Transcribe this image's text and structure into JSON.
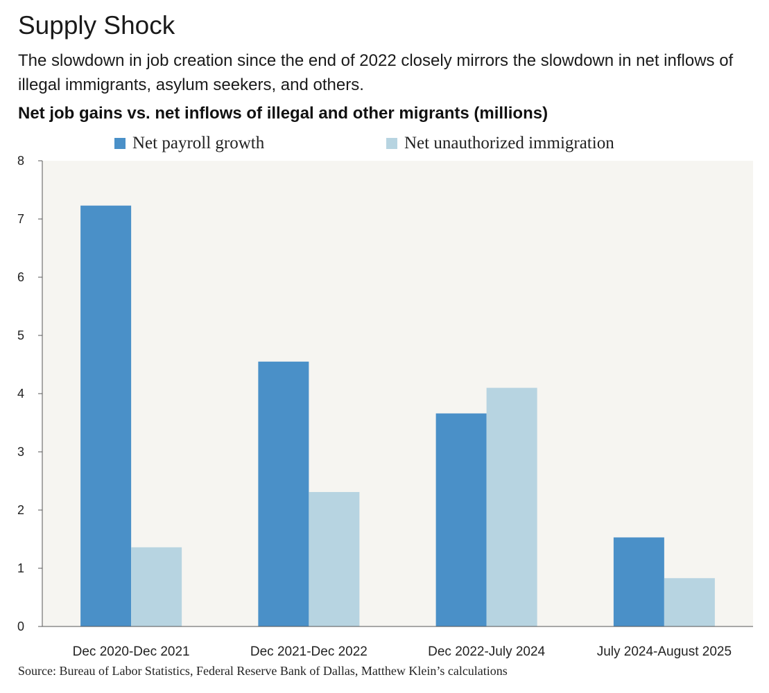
{
  "header": {
    "title": "Supply Shock",
    "subtitle": "The slowdown in job creation since the end of 2022 closely mirrors the slowdown in net inflows of illegal immigrants, asylum seekers, and others.",
    "chart_heading": "Net job gains vs. net inflows of illegal and other migrants (millions)"
  },
  "footer": {
    "source": "Source: Bureau of Labor Statistics, Federal Reserve Bank of Dallas, Matthew Klein’s calculations"
  },
  "colors": {
    "plot_background": "#f6f5f1",
    "net_payroll": "#4a90c8",
    "net_immigration": "#b7d4e1",
    "axis": "#555555"
  },
  "chart_data": {
    "type": "bar",
    "title": "Net job gains vs. net inflows of illegal and other migrants (millions)",
    "categories": [
      "Dec 2020-Dec 2021",
      "Dec 2021-Dec 2022",
      "Dec 2022-July 2024",
      "July 2024-August 2025"
    ],
    "series": [
      {
        "name": "Net payroll growth",
        "values": [
          7.23,
          4.55,
          3.66,
          1.53
        ]
      },
      {
        "name": "Net unauthorized immigration",
        "values": [
          1.36,
          2.31,
          4.1,
          0.83
        ]
      }
    ],
    "ylim": [
      0,
      8
    ],
    "yticks": [
      "0",
      "1",
      "2",
      "3",
      "4",
      "5",
      "6",
      "7",
      "8"
    ],
    "xlabel": "",
    "ylabel": "",
    "legend": "top-center",
    "grid": false
  }
}
